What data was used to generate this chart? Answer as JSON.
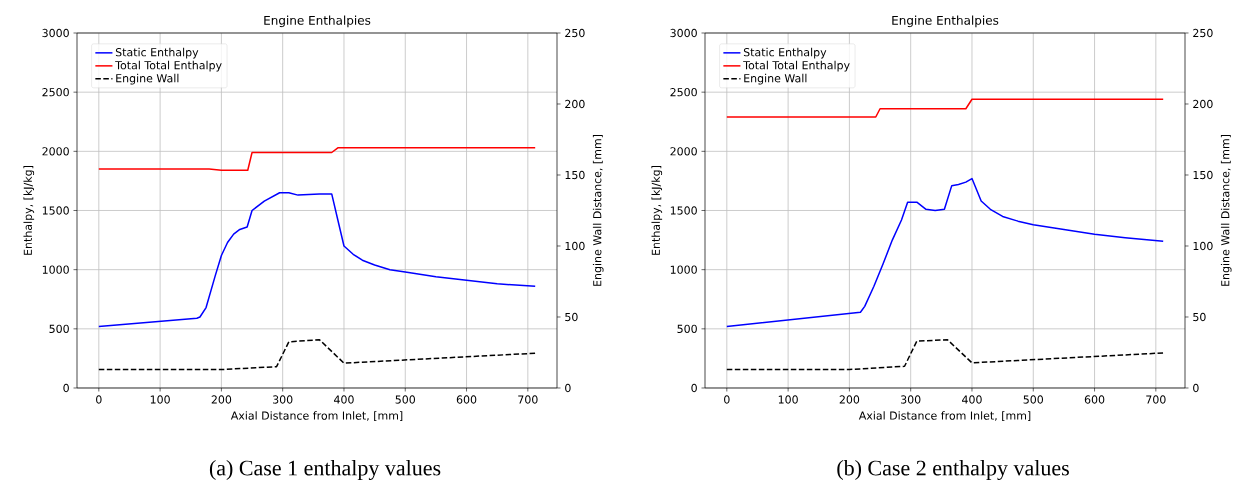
{
  "chart_data": [
    {
      "type": "line",
      "title": "Engine Enthalpies",
      "xlabel": "Axial Distance from Inlet, [mm]",
      "ylabel": "Enthalpy, [kJ/kg]",
      "y2label": "Engine Wall Distance, [mm]",
      "annotations": [
        "(a) Case 1 enthalpy values"
      ],
      "xlim": [
        -35.6,
        747.6
      ],
      "xticks": [
        0,
        100,
        200,
        300,
        400,
        500,
        600,
        700
      ],
      "ylim": [
        0,
        3000
      ],
      "yticks": [
        0,
        500,
        1000,
        1500,
        2000,
        2500,
        3000
      ],
      "y2lim": [
        0,
        250
      ],
      "y2ticks": [
        0,
        50,
        100,
        150,
        200,
        250
      ],
      "grid": true,
      "legend": "top left",
      "series": [
        {
          "name": "Static Enthalpy",
          "color": "#0000ff",
          "line_style": "solid",
          "x": [
            0,
            160,
            165,
            175,
            190,
            200,
            210,
            220,
            230,
            242,
            250,
            270,
            295,
            310,
            325,
            360,
            380,
            390,
            400,
            415,
            430,
            450,
            475,
            500,
            550,
            600,
            650,
            712
          ],
          "values": [
            520,
            590,
            600,
            680,
            950,
            1120,
            1230,
            1300,
            1340,
            1360,
            1500,
            1580,
            1650,
            1650,
            1630,
            1640,
            1640,
            1420,
            1200,
            1130,
            1080,
            1040,
            1000,
            980,
            940,
            910,
            880,
            860
          ]
        },
        {
          "name": "Total Total Enthalpy",
          "color": "#ff0000",
          "line_style": "solid",
          "x": [
            0,
            180,
            200,
            243,
            250,
            380,
            390,
            712
          ],
          "values": [
            1850,
            1850,
            1840,
            1840,
            1990,
            1990,
            2030,
            2030
          ]
        },
        {
          "name": "Engine Wall",
          "color": "#000000",
          "line_style": "dashed",
          "axis": "y2",
          "x": [
            0,
            200,
            290,
            310,
            360,
            400,
            712
          ],
          "values": [
            13,
            13,
            15,
            32.5,
            34,
            17.5,
            24.5
          ]
        }
      ]
    },
    {
      "type": "line",
      "title": "Engine Enthalpies",
      "xlabel": "Axial Distance from Inlet, [mm]",
      "ylabel": "Enthalpy, [kJ/kg]",
      "y2label": "Engine Wall Distance, [mm]",
      "annotations": [
        "(b) Case 2 enthalpy values"
      ],
      "xlim": [
        -35.6,
        747.6
      ],
      "xticks": [
        0,
        100,
        200,
        300,
        400,
        500,
        600,
        700
      ],
      "ylim": [
        0,
        3000
      ],
      "yticks": [
        0,
        500,
        1000,
        1500,
        2000,
        2500,
        3000
      ],
      "y2lim": [
        0,
        250
      ],
      "y2ticks": [
        0,
        50,
        100,
        150,
        200,
        250
      ],
      "grid": true,
      "legend": "top left",
      "series": [
        {
          "name": "Static Enthalpy",
          "color": "#0000ff",
          "line_style": "solid",
          "x": [
            0,
            218,
            225,
            240,
            255,
            270,
            285,
            295,
            310,
            325,
            340,
            355,
            367,
            378,
            390,
            400,
            415,
            430,
            450,
            475,
            500,
            550,
            600,
            650,
            712
          ],
          "values": [
            520,
            640,
            690,
            860,
            1050,
            1250,
            1420,
            1570,
            1570,
            1510,
            1500,
            1510,
            1710,
            1720,
            1740,
            1770,
            1580,
            1510,
            1450,
            1410,
            1380,
            1340,
            1300,
            1270,
            1240
          ]
        },
        {
          "name": "Total Total Enthalpy",
          "color": "#ff0000",
          "line_style": "solid",
          "x": [
            0,
            243,
            250,
            390,
            400,
            712
          ],
          "values": [
            2290,
            2290,
            2360,
            2360,
            2440,
            2440
          ]
        },
        {
          "name": "Engine Wall",
          "color": "#000000",
          "line_style": "dashed",
          "axis": "y2",
          "x": [
            0,
            200,
            290,
            310,
            360,
            400,
            712
          ],
          "values": [
            13,
            13,
            15.3,
            33,
            34,
            17.7,
            24.7
          ]
        }
      ]
    }
  ]
}
